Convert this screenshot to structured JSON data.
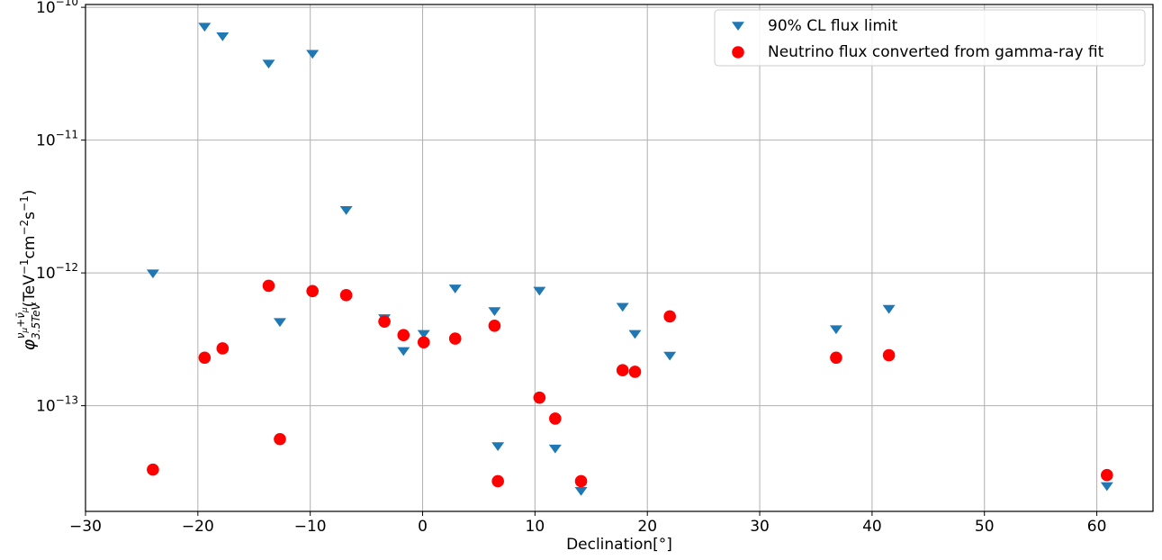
{
  "chart_data": {
    "type": "scatter",
    "xlabel": "Declination[$^\\circ$]",
    "xlabel_text": "Declination[°]",
    "ylabel": "φ_{3.5TeV}^{ν_μ+ν̄_μ}(TeV⁻¹cm⁻²s⁻¹)",
    "xlim": [
      -30,
      65
    ],
    "ylim": [
      1.6e-14,
      1.05e-10
    ],
    "y_scale": "log",
    "grid": true,
    "legend_position": "top-right",
    "x_ticks": [
      -30,
      -20,
      -10,
      0,
      10,
      20,
      30,
      40,
      50,
      60
    ],
    "x_tick_labels": [
      "−30",
      "−20",
      "−10",
      "0",
      "10",
      "20",
      "30",
      "40",
      "50",
      "60"
    ],
    "y_ticks": [
      {
        "value": 1e-10,
        "base": "10",
        "exp": "−10"
      },
      {
        "value": 1e-11,
        "base": "10",
        "exp": "−11"
      },
      {
        "value": 1e-12,
        "base": "10",
        "exp": "−12"
      },
      {
        "value": 1e-13,
        "base": "10",
        "exp": "−13"
      }
    ],
    "series": [
      {
        "name": "90% CL flux limit",
        "marker": "triangle-down",
        "color": "#1f77b4",
        "points": [
          {
            "x": -24.0,
            "y": 1e-12
          },
          {
            "x": -19.4,
            "y": 7.2e-11
          },
          {
            "x": -17.8,
            "y": 6.1e-11
          },
          {
            "x": -13.7,
            "y": 3.8e-11
          },
          {
            "x": -9.8,
            "y": 4.5e-11
          },
          {
            "x": -12.7,
            "y": 4.3e-13
          },
          {
            "x": -6.8,
            "y": 3e-12
          },
          {
            "x": -3.4,
            "y": 4.6e-13
          },
          {
            "x": -1.7,
            "y": 2.6e-13
          },
          {
            "x": 0.1,
            "y": 3.5e-13
          },
          {
            "x": 2.9,
            "y": 7.7e-13
          },
          {
            "x": 6.4,
            "y": 5.2e-13
          },
          {
            "x": 6.7,
            "y": 5e-14
          },
          {
            "x": 10.4,
            "y": 7.4e-13
          },
          {
            "x": 11.8,
            "y": 4.8e-14
          },
          {
            "x": 14.1,
            "y": 2.3e-14
          },
          {
            "x": 17.8,
            "y": 5.6e-13
          },
          {
            "x": 18.9,
            "y": 3.5e-13
          },
          {
            "x": 22.0,
            "y": 2.4e-13
          },
          {
            "x": 36.8,
            "y": 3.8e-13
          },
          {
            "x": 41.5,
            "y": 5.4e-13
          },
          {
            "x": 60.9,
            "y": 2.5e-14
          }
        ]
      },
      {
        "name": "Neutrino flux converted from gamma-ray fit",
        "marker": "circle",
        "color": "#ff0000",
        "points": [
          {
            "x": -24.0,
            "y": 3.3e-14
          },
          {
            "x": -19.4,
            "y": 2.3e-13
          },
          {
            "x": -17.8,
            "y": 2.7e-13
          },
          {
            "x": -13.7,
            "y": 8e-13
          },
          {
            "x": -12.7,
            "y": 5.6e-14
          },
          {
            "x": -9.8,
            "y": 7.3e-13
          },
          {
            "x": -6.8,
            "y": 6.8e-13
          },
          {
            "x": -3.4,
            "y": 4.3e-13
          },
          {
            "x": -1.7,
            "y": 3.4e-13
          },
          {
            "x": 0.1,
            "y": 3e-13
          },
          {
            "x": 2.9,
            "y": 3.2e-13
          },
          {
            "x": 6.4,
            "y": 4e-13
          },
          {
            "x": 6.7,
            "y": 2.7e-14
          },
          {
            "x": 10.4,
            "y": 1.15e-13
          },
          {
            "x": 11.8,
            "y": 8e-14
          },
          {
            "x": 14.1,
            "y": 2.7e-14
          },
          {
            "x": 17.8,
            "y": 1.85e-13
          },
          {
            "x": 18.9,
            "y": 1.8e-13
          },
          {
            "x": 22.0,
            "y": 4.7e-13
          },
          {
            "x": 36.8,
            "y": 2.3e-13
          },
          {
            "x": 41.5,
            "y": 2.4e-13
          },
          {
            "x": 60.9,
            "y": 3e-14
          }
        ]
      }
    ]
  }
}
